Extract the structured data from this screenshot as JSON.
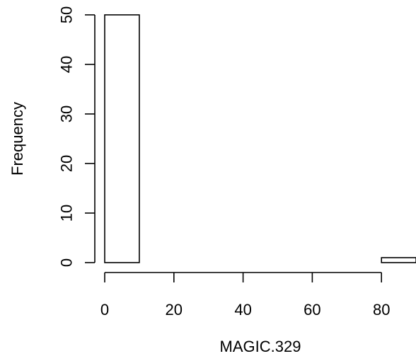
{
  "chart_data": {
    "type": "bar",
    "title": "",
    "xlabel": "MAGIC.329",
    "ylabel": "Frequency",
    "bins": [
      {
        "x0": 0,
        "x1": 10,
        "count": 50
      },
      {
        "x0": 10,
        "x1": 20,
        "count": 0
      },
      {
        "x0": 20,
        "x1": 30,
        "count": 0
      },
      {
        "x0": 30,
        "x1": 40,
        "count": 0
      },
      {
        "x0": 40,
        "x1": 50,
        "count": 0
      },
      {
        "x0": 50,
        "x1": 60,
        "count": 0
      },
      {
        "x0": 60,
        "x1": 70,
        "count": 0
      },
      {
        "x0": 70,
        "x1": 80,
        "count": 0
      },
      {
        "x0": 80,
        "x1": 90,
        "count": 1
      }
    ],
    "x_ticks": [
      0,
      20,
      40,
      60,
      80
    ],
    "y_ticks": [
      0,
      10,
      20,
      30,
      40,
      50
    ],
    "xlim": [
      0,
      90
    ],
    "ylim": [
      0,
      50
    ],
    "grid": false,
    "bar_fill": "#ffffff",
    "bar_stroke": "#000000"
  }
}
